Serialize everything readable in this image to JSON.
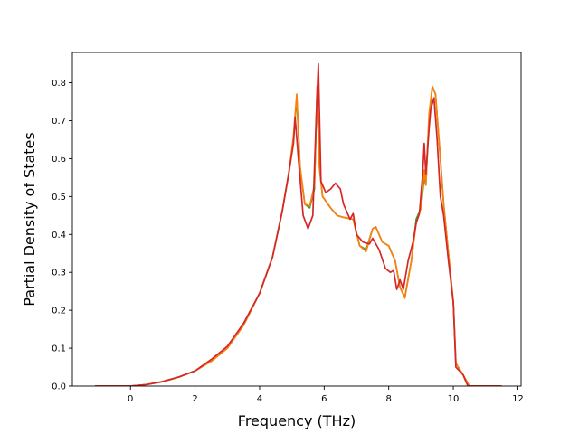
{
  "chart_data": {
    "type": "line",
    "title": "",
    "xlabel": "Frequency (THz)",
    "ylabel": "Partial Density of States",
    "xlim": [
      -1.8,
      12.1
    ],
    "ylim": [
      0.0,
      0.88
    ],
    "xticks": [
      0,
      2,
      4,
      6,
      8,
      10,
      12
    ],
    "xtick_labels": [
      "0",
      "2",
      "4",
      "6",
      "8",
      "10",
      "12"
    ],
    "yticks": [
      0.0,
      0.1,
      0.2,
      0.3,
      0.4,
      0.5,
      0.6,
      0.7,
      0.8
    ],
    "ytick_labels": [
      "0.0",
      "0.1",
      "0.2",
      "0.3",
      "0.4",
      "0.5",
      "0.6",
      "0.7",
      "0.8"
    ],
    "grid": false,
    "legend": "none",
    "series": [
      {
        "color": "#2ca02c",
        "points": [
          [
            -1.1,
            0.0
          ],
          [
            0.0,
            0.0
          ],
          [
            0.5,
            0.004
          ],
          [
            1.0,
            0.012
          ],
          [
            1.5,
            0.024
          ],
          [
            2.0,
            0.04
          ],
          [
            2.5,
            0.065
          ],
          [
            3.0,
            0.1
          ],
          [
            3.5,
            0.16
          ],
          [
            4.0,
            0.245
          ],
          [
            4.4,
            0.34
          ],
          [
            4.7,
            0.46
          ],
          [
            4.9,
            0.56
          ],
          [
            5.05,
            0.65
          ],
          [
            5.15,
            0.76
          ],
          [
            5.25,
            0.58
          ],
          [
            5.4,
            0.48
          ],
          [
            5.55,
            0.47
          ],
          [
            5.7,
            0.52
          ],
          [
            5.78,
            0.78
          ],
          [
            5.85,
            0.58
          ],
          [
            5.95,
            0.5
          ],
          [
            6.2,
            0.47
          ],
          [
            6.4,
            0.45
          ],
          [
            6.6,
            0.445
          ],
          [
            6.9,
            0.44
          ],
          [
            7.1,
            0.37
          ],
          [
            7.3,
            0.36
          ],
          [
            7.5,
            0.415
          ],
          [
            7.6,
            0.42
          ],
          [
            7.8,
            0.38
          ],
          [
            8.0,
            0.37
          ],
          [
            8.2,
            0.33
          ],
          [
            8.35,
            0.26
          ],
          [
            8.5,
            0.235
          ],
          [
            8.7,
            0.33
          ],
          [
            8.85,
            0.44
          ],
          [
            9.0,
            0.47
          ],
          [
            9.1,
            0.55
          ],
          [
            9.15,
            0.53
          ],
          [
            9.25,
            0.7
          ],
          [
            9.35,
            0.79
          ],
          [
            9.45,
            0.77
          ],
          [
            9.6,
            0.6
          ],
          [
            9.7,
            0.48
          ],
          [
            9.85,
            0.35
          ],
          [
            10.0,
            0.22
          ],
          [
            10.08,
            0.06
          ],
          [
            10.3,
            0.03
          ],
          [
            10.5,
            0.0
          ],
          [
            11.5,
            0.0
          ]
        ]
      },
      {
        "color": "#ff7f0e",
        "points": [
          [
            -1.1,
            0.0
          ],
          [
            0.0,
            0.0
          ],
          [
            0.5,
            0.004
          ],
          [
            1.0,
            0.012
          ],
          [
            1.5,
            0.024
          ],
          [
            2.0,
            0.04
          ],
          [
            2.5,
            0.065
          ],
          [
            3.0,
            0.1
          ],
          [
            3.5,
            0.16
          ],
          [
            4.0,
            0.245
          ],
          [
            4.4,
            0.34
          ],
          [
            4.7,
            0.46
          ],
          [
            4.9,
            0.56
          ],
          [
            5.05,
            0.66
          ],
          [
            5.15,
            0.77
          ],
          [
            5.25,
            0.58
          ],
          [
            5.4,
            0.48
          ],
          [
            5.55,
            0.475
          ],
          [
            5.7,
            0.53
          ],
          [
            5.78,
            0.79
          ],
          [
            5.85,
            0.58
          ],
          [
            5.95,
            0.5
          ],
          [
            6.2,
            0.47
          ],
          [
            6.4,
            0.45
          ],
          [
            6.6,
            0.445
          ],
          [
            6.9,
            0.44
          ],
          [
            7.1,
            0.37
          ],
          [
            7.3,
            0.355
          ],
          [
            7.5,
            0.415
          ],
          [
            7.6,
            0.42
          ],
          [
            7.8,
            0.38
          ],
          [
            8.0,
            0.37
          ],
          [
            8.2,
            0.33
          ],
          [
            8.35,
            0.26
          ],
          [
            8.5,
            0.232
          ],
          [
            8.7,
            0.33
          ],
          [
            8.85,
            0.43
          ],
          [
            9.0,
            0.47
          ],
          [
            9.1,
            0.57
          ],
          [
            9.15,
            0.53
          ],
          [
            9.25,
            0.72
          ],
          [
            9.35,
            0.79
          ],
          [
            9.45,
            0.77
          ],
          [
            9.6,
            0.6
          ],
          [
            9.7,
            0.48
          ],
          [
            9.85,
            0.35
          ],
          [
            10.0,
            0.22
          ],
          [
            10.08,
            0.06
          ],
          [
            10.3,
            0.03
          ],
          [
            10.5,
            0.0
          ],
          [
            11.5,
            0.0
          ]
        ]
      },
      {
        "color": "#d62728",
        "points": [
          [
            -1.1,
            0.0
          ],
          [
            0.0,
            0.0
          ],
          [
            0.5,
            0.004
          ],
          [
            1.0,
            0.012
          ],
          [
            1.5,
            0.024
          ],
          [
            2.0,
            0.04
          ],
          [
            2.5,
            0.07
          ],
          [
            3.0,
            0.105
          ],
          [
            3.5,
            0.165
          ],
          [
            4.0,
            0.245
          ],
          [
            4.4,
            0.34
          ],
          [
            4.7,
            0.46
          ],
          [
            4.9,
            0.56
          ],
          [
            5.05,
            0.64
          ],
          [
            5.1,
            0.71
          ],
          [
            5.2,
            0.6
          ],
          [
            5.35,
            0.45
          ],
          [
            5.5,
            0.415
          ],
          [
            5.65,
            0.45
          ],
          [
            5.75,
            0.7
          ],
          [
            5.82,
            0.85
          ],
          [
            5.9,
            0.54
          ],
          [
            6.05,
            0.51
          ],
          [
            6.2,
            0.52
          ],
          [
            6.35,
            0.535
          ],
          [
            6.5,
            0.52
          ],
          [
            6.6,
            0.48
          ],
          [
            6.8,
            0.44
          ],
          [
            6.9,
            0.455
          ],
          [
            7.0,
            0.4
          ],
          [
            7.2,
            0.38
          ],
          [
            7.4,
            0.375
          ],
          [
            7.5,
            0.39
          ],
          [
            7.7,
            0.36
          ],
          [
            7.9,
            0.31
          ],
          [
            8.05,
            0.3
          ],
          [
            8.15,
            0.305
          ],
          [
            8.25,
            0.255
          ],
          [
            8.35,
            0.28
          ],
          [
            8.45,
            0.255
          ],
          [
            8.6,
            0.33
          ],
          [
            8.75,
            0.38
          ],
          [
            8.85,
            0.43
          ],
          [
            8.95,
            0.455
          ],
          [
            9.05,
            0.56
          ],
          [
            9.1,
            0.64
          ],
          [
            9.15,
            0.56
          ],
          [
            9.25,
            0.68
          ],
          [
            9.3,
            0.73
          ],
          [
            9.4,
            0.76
          ],
          [
            9.5,
            0.65
          ],
          [
            9.6,
            0.5
          ],
          [
            9.7,
            0.45
          ],
          [
            9.85,
            0.33
          ],
          [
            10.0,
            0.22
          ],
          [
            10.08,
            0.05
          ],
          [
            10.3,
            0.03
          ],
          [
            10.45,
            0.0
          ],
          [
            11.5,
            0.0
          ]
        ]
      }
    ]
  }
}
